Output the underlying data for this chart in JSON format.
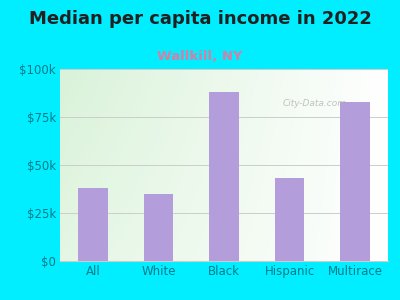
{
  "title": "Median per capita income in 2022",
  "subtitle": "Wallkill, NY",
  "categories": [
    "All",
    "White",
    "Black",
    "Hispanic",
    "Multirace"
  ],
  "values": [
    38000,
    35000,
    88000,
    43000,
    83000
  ],
  "bar_color": "#b39ddb",
  "outer_bg_color": "#00eeff",
  "title_color": "#212121",
  "subtitle_color": "#d47fa6",
  "tick_color": "#007b8a",
  "ylim": [
    0,
    100000
  ],
  "yticks": [
    0,
    25000,
    50000,
    75000,
    100000
  ],
  "ytick_labels": [
    "$0",
    "$25k",
    "$50k",
    "$75k",
    "$100k"
  ],
  "title_fontsize": 13,
  "subtitle_fontsize": 9.5,
  "tick_fontsize": 8.5,
  "watermark": "City-Data.com",
  "grid_color": "#cccccc",
  "plot_bg_left": "#c8e6c9",
  "plot_bg_right": "#ffffff"
}
